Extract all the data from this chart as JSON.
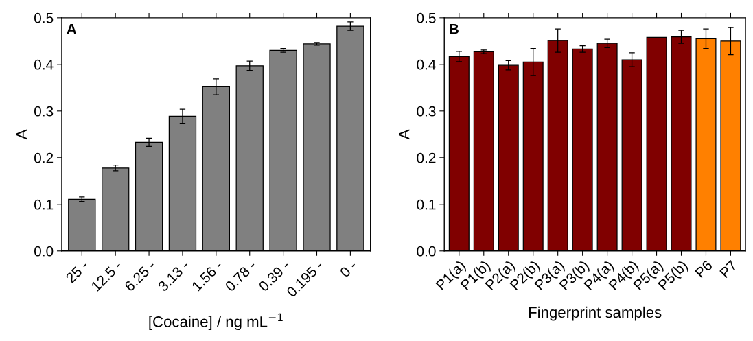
{
  "chart_data": [
    {
      "type": "bar",
      "xlabel": "[Cocaine] / ng mL$^{−1}$",
      "ylabel": "A",
      "annotations": [
        "A"
      ],
      "categories": [
        "25 -",
        "12.5 -",
        "6.25 -",
        "3.13 -",
        "1.56 -",
        "0.78 -",
        "0.39 -",
        "0.195 -",
        "0 -"
      ],
      "values": [
        0.111,
        0.178,
        0.233,
        0.289,
        0.352,
        0.397,
        0.43,
        0.444,
        0.482
      ],
      "errors": [
        0.005,
        0.006,
        0.009,
        0.015,
        0.017,
        0.01,
        0.004,
        0.003,
        0.009
      ],
      "colors": [
        "#808080",
        "#808080",
        "#808080",
        "#808080",
        "#808080",
        "#808080",
        "#808080",
        "#808080",
        "#808080"
      ],
      "ylim": [
        0,
        0.5
      ],
      "yticks": [
        {
          "value": 0,
          "label": "0.0"
        },
        0.1,
        0.2,
        0.3,
        0.4,
        0.5
      ],
      "grid": false
    },
    {
      "type": "bar",
      "xlabel": "Fingerprint samples",
      "ylabel": "A",
      "annotations": [
        "B"
      ],
      "categories": [
        "P1(a)",
        "P1(b)",
        "P2(a)",
        "P2(b)",
        "P3(a)",
        "P3(b)",
        "P4(a)",
        "P4(b)",
        "P5(a)",
        "P5(b)",
        "P6",
        "P7"
      ],
      "values": [
        0.417,
        0.427,
        0.398,
        0.405,
        0.451,
        0.433,
        0.445,
        0.41,
        0.458,
        0.459,
        0.455,
        0.45
      ],
      "errors": [
        0.011,
        0.004,
        0.01,
        0.029,
        0.025,
        0.007,
        0.009,
        0.015,
        null,
        0.014,
        0.021,
        0.029
      ],
      "colors": [
        "#800000",
        "#800000",
        "#800000",
        "#800000",
        "#800000",
        "#800000",
        "#800000",
        "#800000",
        "#800000",
        "#800000",
        "#ff8000",
        "#ff8000"
      ],
      "ylim": [
        0,
        0.5
      ],
      "yticks": [
        {
          "value": 0,
          "label": "0.0"
        },
        0.1,
        0.2,
        0.3,
        0.4,
        0.5
      ],
      "grid": false
    }
  ]
}
